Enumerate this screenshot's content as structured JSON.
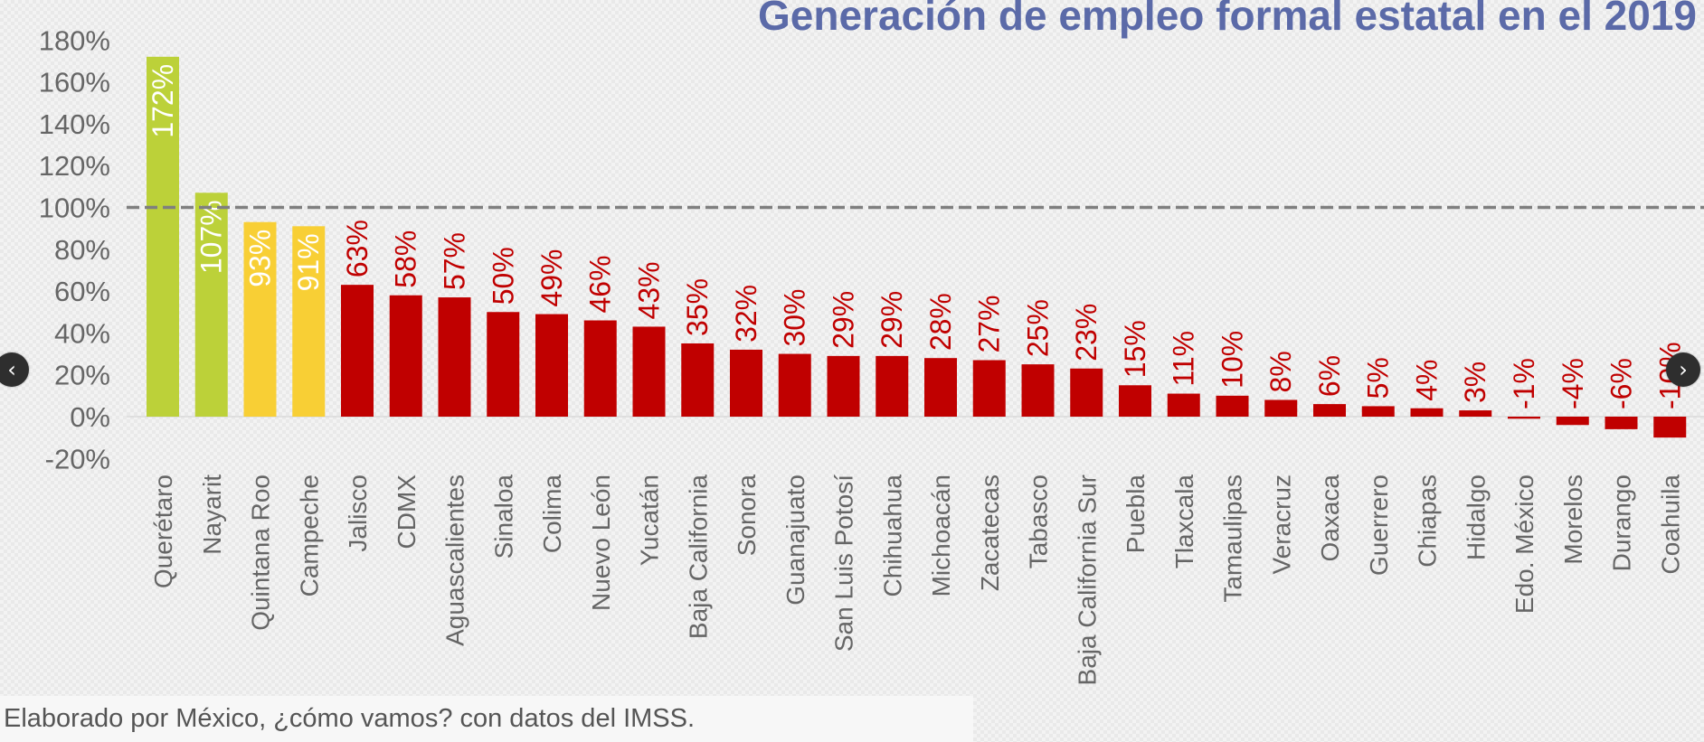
{
  "chart_data": {
    "type": "bar",
    "title": "Generación de empleo formal estatal en el 2019",
    "categories": [
      "Querétaro",
      "Nayarit",
      "Quintana Roo",
      "Campeche",
      "Jalisco",
      "CDMX",
      "Aguascalientes",
      "Sinaloa",
      "Colima",
      "Nuevo León",
      "Yucatán",
      "Baja California",
      "Sonora",
      "Guanajuato",
      "San Luis Potosí",
      "Chihuahua",
      "Michoacán",
      "Zacatecas",
      "Tabasco",
      "Baja California Sur",
      "Puebla",
      "Tlaxcala",
      "Tamaulipas",
      "Veracruz",
      "Oaxaca",
      "Guerrero",
      "Chiapas",
      "Hidalgo",
      "Edo. México",
      "Morelos",
      "Durango",
      "Coahuila"
    ],
    "values": [
      172,
      107,
      93,
      91,
      63,
      58,
      57,
      50,
      49,
      46,
      43,
      35,
      32,
      30,
      29,
      29,
      28,
      27,
      25,
      23,
      15,
      11,
      10,
      8,
      6,
      5,
      4,
      3,
      -1,
      -4,
      -6,
      -10
    ],
    "data_labels": [
      "172%",
      "107%",
      "93%",
      "91%",
      "63%",
      "58%",
      "57%",
      "50%",
      "49%",
      "46%",
      "43%",
      "35%",
      "32%",
      "30%",
      "29%",
      "29%",
      "28%",
      "27%",
      "25%",
      "23%",
      "15%",
      "11%",
      "10%",
      "8%",
      "6%",
      "5%",
      "4%",
      "3%",
      "-1%",
      "-4%",
      "-6%",
      "-10%"
    ],
    "yticks": [
      180,
      160,
      140,
      120,
      100,
      80,
      60,
      40,
      20,
      0,
      -20
    ],
    "ytick_labels": [
      "180%",
      "160%",
      "140%",
      "120%",
      "100%",
      "80%",
      "60%",
      "40%",
      "20%",
      "0%",
      "-20%"
    ],
    "ylim": [
      -20,
      180
    ],
    "reference_line": 100,
    "grid": false,
    "legend": "none",
    "colors": {
      "above_100": "#bcd139",
      "between_90_100": "#f8cf35",
      "below_90": "#c00000",
      "label_inside": "#ffffff",
      "label_outside": "#c00000",
      "title": "#5b6aa8",
      "axis_text": "#666666",
      "reference_line": "#7f7f7f"
    }
  },
  "source": "Elaborado por México, ¿cómo vamos? con datos del IMSS.",
  "nav": {
    "prev_icon": "‹",
    "next_icon": "›"
  }
}
